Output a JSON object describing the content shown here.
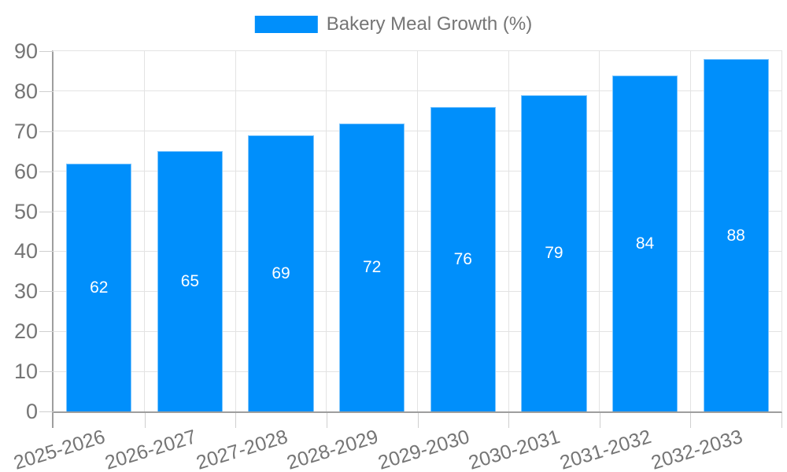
{
  "chart_data": {
    "type": "bar",
    "title": "Bakery Meal Growth (%)",
    "categories": [
      "2025-2026",
      "2026-2027",
      "2027-2028",
      "2028-2029",
      "2029-2030",
      "2030-2031",
      "2031-2032",
      "2032-2033"
    ],
    "values": [
      62,
      65,
      69,
      72,
      76,
      79,
      84,
      88
    ],
    "series": [
      {
        "name": "Bakery Meal Growth (%)",
        "values": [
          62,
          65,
          69,
          72,
          76,
          79,
          84,
          88
        ]
      }
    ],
    "xlabel": "",
    "ylabel": "",
    "ylim": [
      0,
      90
    ],
    "yticks": [
      0,
      10,
      20,
      30,
      40,
      50,
      60,
      70,
      80,
      90
    ],
    "grid": true,
    "legend_position": "top-center",
    "x_label_rotation_deg": -17,
    "bar_labels_visible": true,
    "bar_label_position": "center",
    "colors": {
      "bar": "#008FFB",
      "bar_border": "rgba(255,255,255,0.5)",
      "bar_label": "#FFFFFF",
      "grid": "#E3E3E3",
      "axis_line": "#9E9E9E",
      "tick": "#CFCFCF",
      "text": "#757575",
      "background": "#FFFFFF"
    }
  },
  "legend": {
    "items": [
      {
        "label": "Bakery Meal Growth (%)",
        "color": "#008FFB"
      }
    ]
  }
}
